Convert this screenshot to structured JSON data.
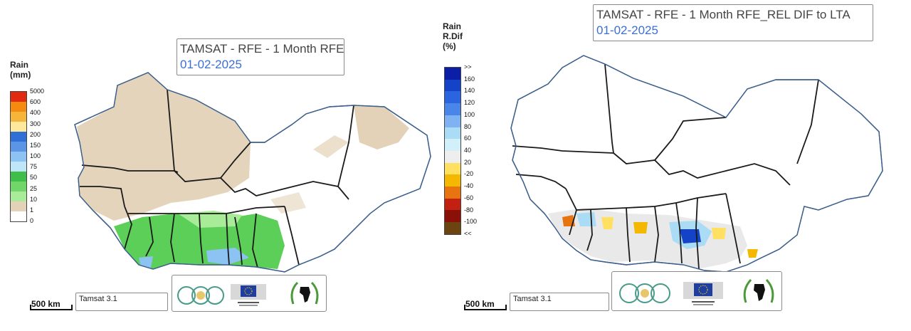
{
  "left_map": {
    "title": "TAMSAT - RFE - 1 Month RFE",
    "date": "01-02-2025",
    "legend": {
      "title_line1": "Rain",
      "title_line2": "(mm)",
      "ticks": [
        "5000",
        "600",
        "400",
        "300",
        "200",
        "150",
        "100",
        "75",
        "50",
        "25",
        "10",
        "1",
        "0"
      ],
      "colors": [
        "#e02a12",
        "#f58a10",
        "#f5b43a",
        "#fde89c",
        "#2f6fd6",
        "#5c95e6",
        "#8cc3f2",
        "#bfe6f8",
        "#3fbf4a",
        "#70d66a",
        "#a8ec9a",
        "#e3d2b8",
        "#ffffff"
      ]
    },
    "scale_label": "500 km",
    "source_label": "Tamsat 3.1"
  },
  "right_map": {
    "title": "TAMSAT - RFE - 1 Month RFE_REL DIF to LTA",
    "date": "01-02-2025",
    "legend": {
      "title_line1": "Rain",
      "title_line2": "R.Dif",
      "title_line3": "(%)",
      "ticks": [
        ">>",
        "160",
        "140",
        "120",
        "100",
        "80",
        "60",
        "40",
        "20",
        "-20",
        "-40",
        "-60",
        "-80",
        "-100",
        "<<"
      ],
      "colors": [
        "#0a1ea8",
        "#1443c8",
        "#2a64e0",
        "#4a86ea",
        "#7eb2f2",
        "#aadcf6",
        "#d2f0fa",
        "#eeeeee",
        "#ffe060",
        "#f5b800",
        "#e87410",
        "#c22010",
        "#8a1008",
        "#6b4410"
      ]
    },
    "scale_label": "500 km",
    "source_label": "Tamsat 3.1"
  },
  "logos": {
    "aap": "AAP logo",
    "eu": "European Commission",
    "cilss": "CILSS"
  },
  "colors": {
    "border": "#1a1a1a",
    "coast": "#3c5f8c",
    "land_dry": "#e3d2b8"
  }
}
